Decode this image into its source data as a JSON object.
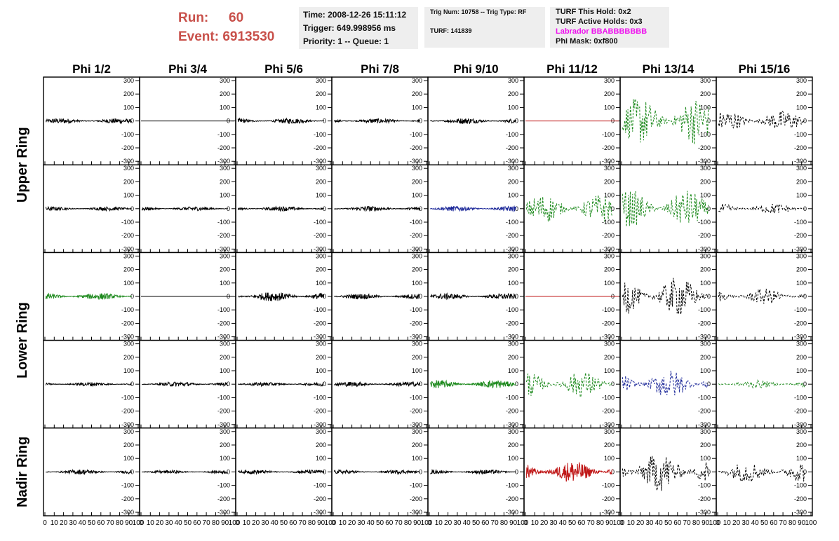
{
  "header": {
    "run_label": "Run:",
    "run_value": "60",
    "event_label": "Event:",
    "event_value": "6913530"
  },
  "info_time": {
    "time": "Time: 2008-12-26 15:11:12",
    "trigger": "Trigger: 649.998956 ms",
    "priority": "Priority: 1 -- Queue: 1"
  },
  "info_trig": {
    "trig": "Trig Num: 10758 -- Trig Type: RF",
    "turf": "TURF: 141839"
  },
  "info_turf": {
    "this_hold": "TURF This Hold: 0x2",
    "active_holds": "TURF Active Holds: 0x3",
    "labrador": "Labrador BBABBBBBBB",
    "phi_mask": "Phi Mask: 0xf800"
  },
  "chart_data": {
    "type": "line",
    "columns": [
      "Phi 1/2",
      "Phi 3/4",
      "Phi 5/6",
      "Phi 7/8",
      "Phi 9/10",
      "Phi 11/12",
      "Phi 13/14",
      "Phi 15/16"
    ],
    "rows": [
      "Upper Ring",
      "Lower Ring",
      "Nadir Ring"
    ],
    "row_label_span": [
      2,
      2,
      1
    ],
    "ylim": [
      -300,
      300
    ],
    "yticks": [
      "300",
      "200",
      "100",
      "0",
      "-100",
      "-200",
      "-300"
    ],
    "xlim": [
      0,
      100
    ],
    "xticks": [
      "0",
      "10",
      "20",
      "30",
      "40",
      "50",
      "60",
      "70",
      "80",
      "90",
      "100"
    ],
    "color_key": {
      "black": "#000000",
      "green": "#1e8a1e",
      "blue": "#1e2a9a",
      "red": "#c01818"
    },
    "panels": [
      [
        {
          "amp": 20,
          "color": "black",
          "dash": false
        },
        {
          "amp": 0,
          "color": "black",
          "dash": false
        },
        {
          "amp": 20,
          "color": "black",
          "dash": false
        },
        {
          "amp": 18,
          "color": "black",
          "dash": false
        },
        {
          "amp": 22,
          "color": "black",
          "dash": false
        },
        {
          "amp": 0,
          "color": "red",
          "dash": false
        },
        {
          "amp": 180,
          "color": "green",
          "dash": true
        },
        {
          "amp": 80,
          "color": "black",
          "dash": true
        }
      ],
      [
        {
          "amp": 15,
          "color": "black",
          "dash": false
        },
        {
          "amp": 16,
          "color": "black",
          "dash": false
        },
        {
          "amp": 18,
          "color": "black",
          "dash": false
        },
        {
          "amp": 20,
          "color": "black",
          "dash": false
        },
        {
          "amp": 20,
          "color": "blue",
          "dash": false
        },
        {
          "amp": 110,
          "color": "green",
          "dash": true
        },
        {
          "amp": 140,
          "color": "green",
          "dash": true
        },
        {
          "amp": 40,
          "color": "black",
          "dash": true
        }
      ],
      [
        {
          "amp": 25,
          "color": "green",
          "dash": false
        },
        {
          "amp": 0,
          "color": "black",
          "dash": false
        },
        {
          "amp": 35,
          "color": "black",
          "dash": false
        },
        {
          "amp": 20,
          "color": "black",
          "dash": false
        },
        {
          "amp": 22,
          "color": "black",
          "dash": false
        },
        {
          "amp": 0,
          "color": "red",
          "dash": false
        },
        {
          "amp": 150,
          "color": "black",
          "dash": true
        },
        {
          "amp": 60,
          "color": "black",
          "dash": true
        }
      ],
      [
        {
          "amp": 15,
          "color": "black",
          "dash": false
        },
        {
          "amp": 18,
          "color": "black",
          "dash": false
        },
        {
          "amp": 15,
          "color": "black",
          "dash": false
        },
        {
          "amp": 18,
          "color": "black",
          "dash": false
        },
        {
          "amp": 30,
          "color": "green",
          "dash": false
        },
        {
          "amp": 100,
          "color": "green",
          "dash": true
        },
        {
          "amp": 110,
          "color": "blue",
          "dash": true
        },
        {
          "amp": 30,
          "color": "green",
          "dash": true
        }
      ],
      [
        {
          "amp": 18,
          "color": "black",
          "dash": false
        },
        {
          "amp": 12,
          "color": "black",
          "dash": false
        },
        {
          "amp": 15,
          "color": "black",
          "dash": false
        },
        {
          "amp": 14,
          "color": "black",
          "dash": false
        },
        {
          "amp": 16,
          "color": "black",
          "dash": false
        },
        {
          "amp": 80,
          "color": "red",
          "dash": false
        },
        {
          "amp": 150,
          "color": "black",
          "dash": true
        },
        {
          "amp": 80,
          "color": "black",
          "dash": true
        }
      ]
    ]
  }
}
